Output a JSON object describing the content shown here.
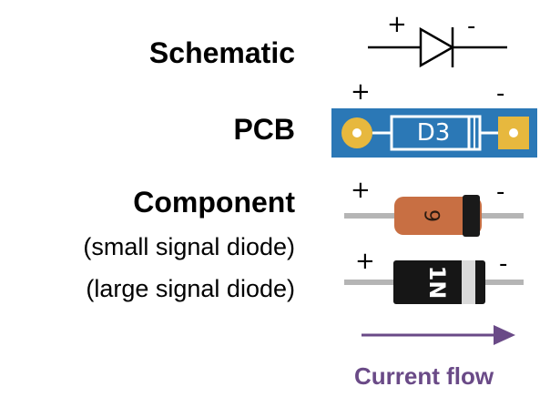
{
  "labels": {
    "schematic": "Schematic",
    "pcb": "PCB",
    "component": "Component",
    "small_signal": "(small signal diode)",
    "large_signal": "(large signal diode)"
  },
  "polarity": {
    "plus": "+",
    "minus": "-"
  },
  "pcb_designator": "D3",
  "small_diode_marking": "6",
  "large_diode_marking": "1N",
  "current_flow_label": "Current flow",
  "colors": {
    "pcb_board": "#2b78b6",
    "pcb_pad": "#e7b83e",
    "small_diode_body": "#c86f43",
    "diode_band": "#1a1a1a",
    "large_diode_body": "#161616",
    "lead": "#b5b5b5",
    "arrow": "#6a4a87"
  }
}
